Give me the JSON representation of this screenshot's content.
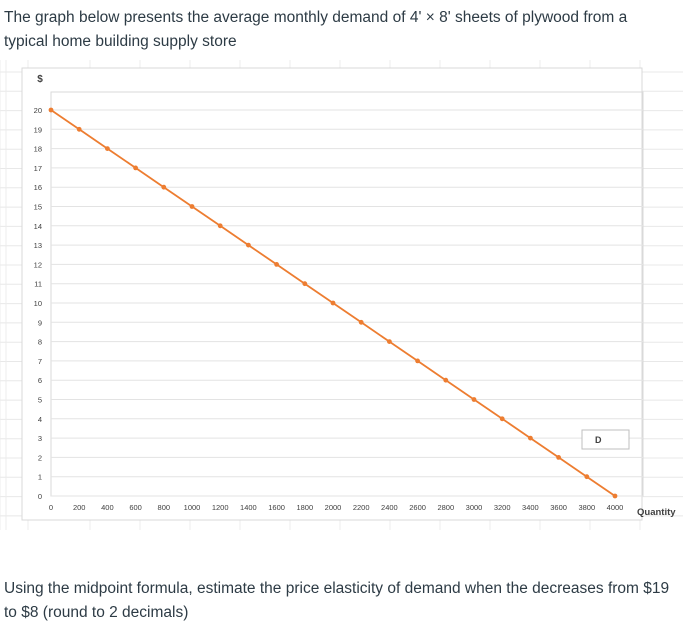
{
  "intro_text": "The graph below presents the average monthly demand of 4' × 8' sheets of plywood from a typical home building supply store",
  "question_text": "Using the midpoint formula, estimate the price elasticity of demand when the decreases from $19  to $8 (round to 2 decimals)",
  "chart_data": {
    "type": "line",
    "ylabel": "$",
    "xlabel": "Quantity",
    "xlim": [
      0,
      4000
    ],
    "ylim": [
      0,
      20
    ],
    "x_ticks": [
      0,
      200,
      400,
      600,
      800,
      1000,
      1200,
      1400,
      1600,
      1800,
      2000,
      2200,
      2400,
      2600,
      2800,
      3000,
      3200,
      3400,
      3600,
      3800,
      4000
    ],
    "y_ticks": [
      0,
      1,
      2,
      3,
      4,
      5,
      6,
      7,
      8,
      9,
      10,
      11,
      12,
      13,
      14,
      15,
      16,
      17,
      18,
      19,
      20
    ],
    "grid": true,
    "series": [
      {
        "name": "D",
        "color": "#ed7d31",
        "x": [
          0,
          200,
          400,
          600,
          800,
          1000,
          1200,
          1400,
          1600,
          1800,
          2000,
          2200,
          2400,
          2600,
          2800,
          3000,
          3200,
          3400,
          3600,
          3800,
          4000
        ],
        "y": [
          20,
          19,
          18,
          17,
          16,
          15,
          14,
          13,
          12,
          11,
          10,
          9,
          8,
          7,
          6,
          5,
          4,
          3,
          2,
          1,
          0
        ]
      }
    ]
  }
}
